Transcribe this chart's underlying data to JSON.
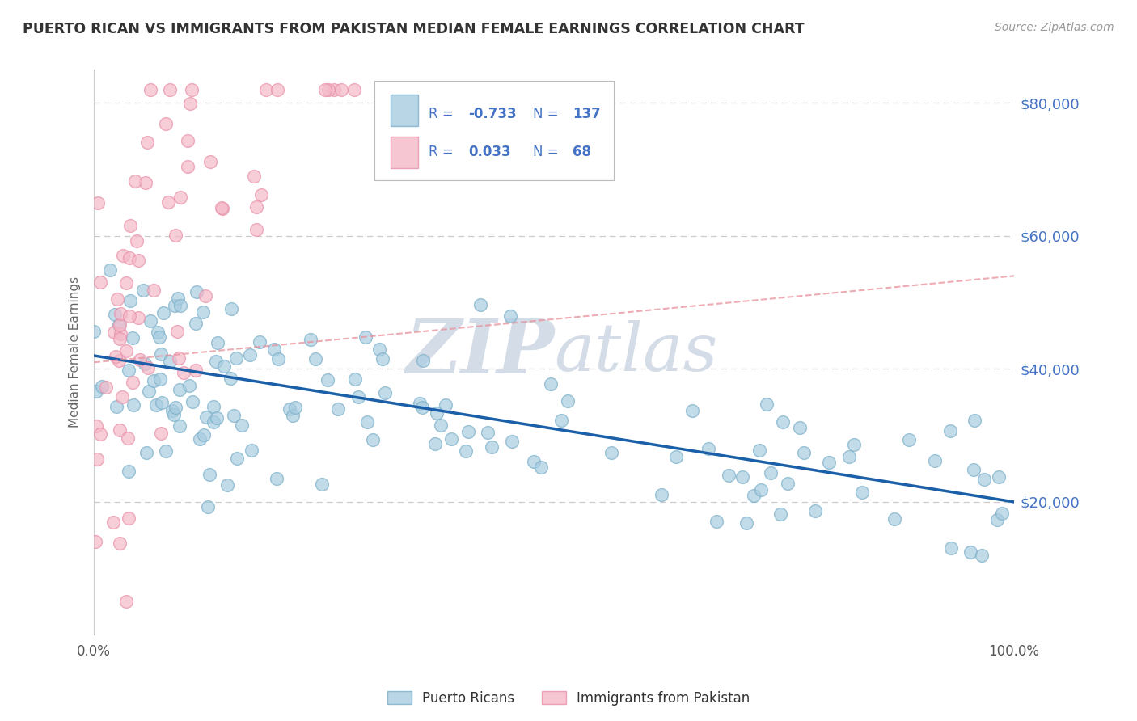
{
  "title": "PUERTO RICAN VS IMMIGRANTS FROM PAKISTAN MEDIAN FEMALE EARNINGS CORRELATION CHART",
  "source_text": "Source: ZipAtlas.com",
  "ylabel": "Median Female Earnings",
  "xlim": [
    0,
    1.0
  ],
  "ylim": [
    0,
    85000
  ],
  "blue_color": "#a8cce0",
  "blue_edge_color": "#7aafc8",
  "pink_color": "#f4b8c8",
  "pink_edge_color": "#e890a8",
  "blue_line_color": "#1a5fa8",
  "pink_line_color": "#e8909a",
  "grid_color": "#cccccc",
  "watermark_color": "#d4dce8",
  "legend_text_color": "#4472c4",
  "ytick_color": "#4472c4",
  "title_color": "#333333",
  "source_color": "#999999",
  "ylabel_color": "#666666",
  "blue_R": -0.733,
  "blue_N": 137,
  "pink_R": 0.033,
  "pink_N": 68,
  "blue_line_x0": 0.0,
  "blue_line_y0": 42000,
  "blue_line_x1": 1.0,
  "blue_line_y1": 20000,
  "pink_line_x0": 0.0,
  "pink_line_y0": 41000,
  "pink_line_x1": 1.0,
  "pink_line_y1": 54000,
  "blue_seed": 7777,
  "pink_seed": 8888
}
